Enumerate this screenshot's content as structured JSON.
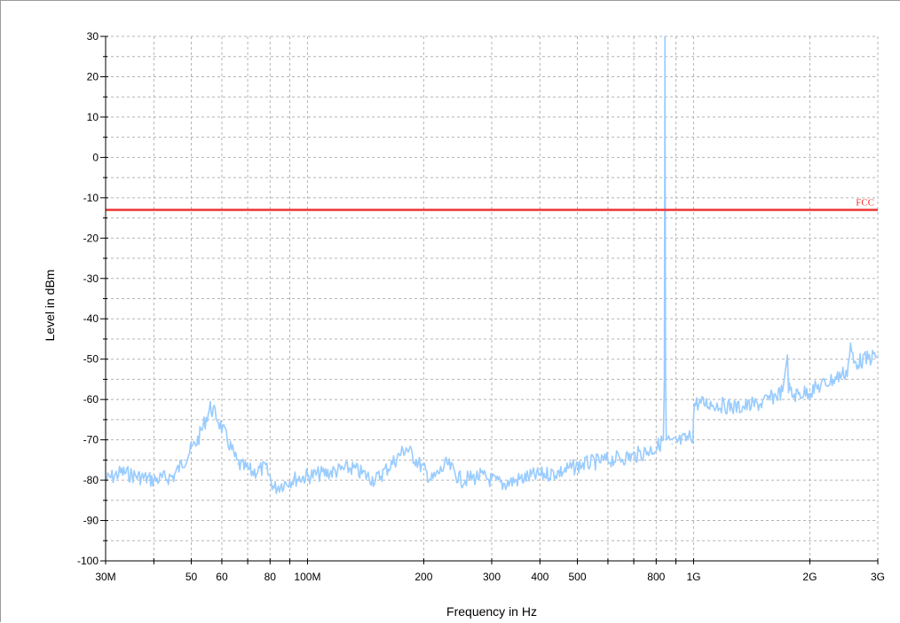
{
  "chart_data": {
    "type": "line",
    "title": "",
    "xlabel": "Frequency in Hz",
    "ylabel": "Level in dBm",
    "x_scale": "log",
    "xlim": [
      30000000,
      3000000000
    ],
    "ylim": [
      -100,
      30
    ],
    "grid": true,
    "grid_style": "dashed",
    "y_ticks": [
      30,
      20,
      10,
      0,
      -10,
      -20,
      -30,
      -40,
      -50,
      -60,
      -70,
      -80,
      -90,
      -100
    ],
    "x_ticks": [
      {
        "value": 30000000,
        "label": "30M"
      },
      {
        "value": 50000000,
        "label": "50"
      },
      {
        "value": 60000000,
        "label": "60"
      },
      {
        "value": 80000000,
        "label": "80"
      },
      {
        "value": 100000000,
        "label": "100M"
      },
      {
        "value": 200000000,
        "label": "200"
      },
      {
        "value": 300000000,
        "label": "300"
      },
      {
        "value": 400000000,
        "label": "400"
      },
      {
        "value": 500000000,
        "label": "500"
      },
      {
        "value": 800000000,
        "label": "800"
      },
      {
        "value": 1000000000,
        "label": "1G"
      },
      {
        "value": 2000000000,
        "label": "2G"
      },
      {
        "value": 3000000000,
        "label": "3G"
      }
    ],
    "x_gridlines": [
      40000000,
      70000000,
      90000000,
      600000000,
      700000000,
      900000000
    ],
    "series": [
      {
        "kind": "measurement",
        "color": "#99ccff",
        "x": [
          30000000,
          33000000,
          36000000,
          40000000,
          45000000,
          48000000,
          52000000,
          54000000,
          56000000,
          58000000,
          62000000,
          66000000,
          72000000,
          78000000,
          82000000,
          90000000,
          100000000,
          115000000,
          130000000,
          150000000,
          165000000,
          180000000,
          195000000,
          210000000,
          230000000,
          250000000,
          280000000,
          320000000,
          380000000,
          450000000,
          520000000,
          600000000,
          700000000,
          800000000,
          835000000,
          840000000,
          843000000,
          846000000,
          850000000,
          880000000,
          950000000,
          995000000,
          1005000000,
          1100000000,
          1300000000,
          1500000000,
          1700000000,
          1750000000,
          1760000000,
          1800000000,
          2000000000,
          2300000000,
          2500000000,
          2550000000,
          2600000000,
          2800000000,
          3000000000
        ],
        "y": [
          -80,
          -78,
          -79,
          -80,
          -79,
          -75,
          -70,
          -66,
          -62,
          -64,
          -70,
          -76,
          -78,
          -77,
          -82,
          -80,
          -79,
          -78,
          -77,
          -80,
          -76,
          -72,
          -76,
          -80,
          -76,
          -80,
          -79,
          -81,
          -79,
          -78,
          -76,
          -75,
          -74,
          -72,
          -70,
          -55,
          30,
          -55,
          -70,
          -71,
          -70,
          -69,
          -61,
          -61,
          -62,
          -61,
          -58,
          -49,
          -57,
          -59,
          -58,
          -55,
          -53,
          -47,
          -51,
          -50,
          -49
        ]
      }
    ],
    "limit_lines": [
      {
        "name": "FCC",
        "y": -13,
        "color": "#ee3333"
      }
    ]
  }
}
